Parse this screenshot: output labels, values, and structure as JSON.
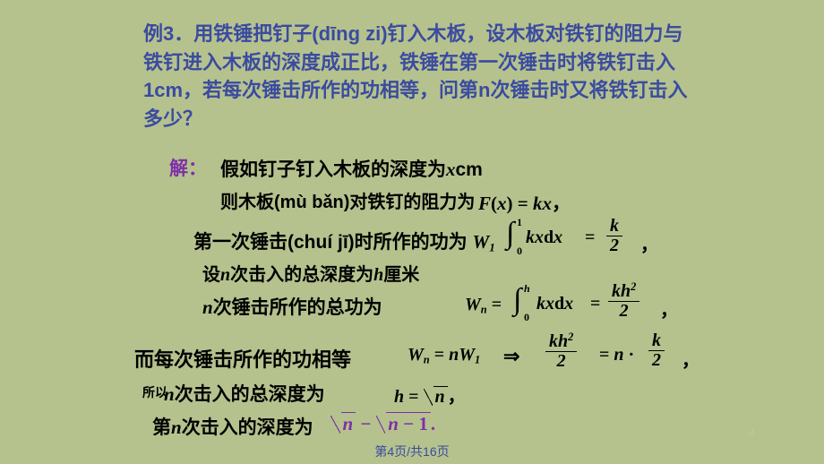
{
  "colors": {
    "background": "#b5c28e",
    "problem_text": "#3b4ba0",
    "accent_purple": "#7f2fa8",
    "body_text": "#000000",
    "pagenum": "#bcc6a2"
  },
  "typography": {
    "problem_fontsize": 22,
    "body_fontsize": 21,
    "small_fontsize": 14,
    "font_family_cjk": "Microsoft YaHei, SimSun",
    "font_family_math": "Times New Roman"
  },
  "problem": {
    "label": "例3．",
    "text": "用铁锤把钉子(dīng zi)钉入木板，设木板对铁钉的阻力与铁钉进入木板的深度成正比，铁锤在第一次锤击时将铁钉击入1cm，若每次锤击所作的功相等，问第n次锤击时又将铁钉击入多少？"
  },
  "solution_label": "解：",
  "lines": {
    "l1a": "假如钉子钉入木板的深度为",
    "l1b": "x",
    "l1c": "cm",
    "l2": "则木板(mù bǎn)对铁钉的阻力为",
    "l3": "第一次锤击(chuí jī)时所作的功为",
    "l4a": "设",
    "l4b": "n",
    "l4c": "次击入的总深度为",
    "l4d": "h",
    "l4e": "厘米",
    "l5a": "n",
    "l5b": "次锤击所作的总功为",
    "l6": "而每次锤击所作的功相等",
    "l7a": "所以",
    "l7b": "n",
    "l7c": "次击入的总深度为",
    "l8a": "第",
    "l8b": "n",
    "l8c": "次击入的深度为"
  },
  "math": {
    "eq1": "F(x) = kx，",
    "eq2": {
      "W_sub": "1",
      "int_low": "0",
      "int_up": "1",
      "integrand": "kx",
      "dx": "dx",
      "frac_num": "k",
      "frac_den": "2"
    },
    "eqWn": {
      "W_sub": "n",
      "int_low": "0",
      "int_up": "h",
      "integrand": "kx",
      "dx": "dx",
      "frac_num": "kh",
      "frac_num_sup": "2",
      "frac_den": "2"
    },
    "eqImpl": {
      "lhs_W_sub": "n",
      "rhs_n": "n",
      "rhs_W_sub": "1",
      "frac1_num": "kh",
      "frac1_num_sup": "2",
      "frac1_den": "2",
      "mid": "= n ·",
      "frac2_num": "k",
      "frac2_den": "2"
    },
    "eqH": {
      "lhs": "h =",
      "rad": "n",
      "tail": "，"
    },
    "eqFinal": {
      "rad1": "n",
      "minus": " − ",
      "rad2": "n − 1",
      "tail": "."
    }
  },
  "footer": {
    "page_current": 4,
    "page_total": 16,
    "text": "第4页/共16页",
    "small_pagenum": "4"
  }
}
